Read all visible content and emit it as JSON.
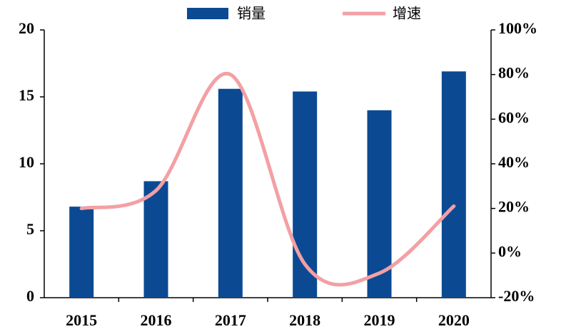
{
  "chart_data": {
    "type": "bar-line",
    "categories": [
      "2015",
      "2016",
      "2017",
      "2018",
      "2019",
      "2020"
    ],
    "series": [
      {
        "name": "销量",
        "color": "#0b4a93",
        "type": "bar",
        "values": [
          6.8,
          8.7,
          15.6,
          15.4,
          14.0,
          16.9
        ]
      },
      {
        "name": "增速",
        "color": "#f3a0a4",
        "type": "line",
        "axis": "y2",
        "values": [
          20,
          28,
          80,
          -5,
          -9,
          21
        ]
      }
    ],
    "ylim": [
      0,
      20
    ],
    "yticks": [
      0,
      5,
      10,
      15,
      20
    ],
    "y2lim": [
      -20,
      100
    ],
    "y2ticks": [
      {
        "value": -20,
        "label": "-20%"
      },
      {
        "value": 0,
        "label": "0%"
      },
      {
        "value": 20,
        "label": "20%"
      },
      {
        "value": 40,
        "label": "40%"
      },
      {
        "value": 60,
        "label": "60%"
      },
      {
        "value": 80,
        "label": "80%"
      },
      {
        "value": 100,
        "label": "100%"
      }
    ],
    "legend": "top"
  }
}
